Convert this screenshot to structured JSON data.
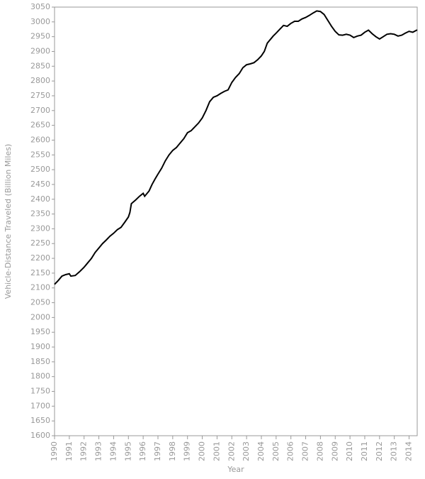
{
  "chart_data": {
    "type": "line",
    "x_label": "Year",
    "y_label": "Vehicle-Distance Traveled (Billion Miles)",
    "xlim": [
      1990,
      2014.55
    ],
    "ylim": [
      1600,
      3050
    ],
    "xticks": [
      1990,
      1991,
      1992,
      1993,
      1994,
      1995,
      1996,
      1997,
      1998,
      1999,
      2000,
      2001,
      2002,
      2003,
      2004,
      2005,
      2006,
      2007,
      2008,
      2009,
      2010,
      2011,
      2012,
      2013,
      2014
    ],
    "yticks": [
      1600,
      1650,
      1700,
      1750,
      1800,
      1850,
      1900,
      1950,
      2000,
      2050,
      2100,
      2150,
      2200,
      2250,
      2300,
      2350,
      2400,
      2450,
      2500,
      2550,
      2600,
      2650,
      2700,
      2750,
      2800,
      2850,
      2900,
      2950,
      3000,
      3050
    ],
    "grid": false,
    "series": [
      {
        "color": "#000000",
        "x": [
          1990.0,
          1990.25,
          1990.5,
          1990.75,
          1991.0,
          1991.1,
          1991.4,
          1991.7,
          1992.0,
          1992.25,
          1992.5,
          1992.75,
          1993.0,
          1993.25,
          1993.5,
          1993.75,
          1994.0,
          1994.25,
          1994.5,
          1994.75,
          1995.0,
          1995.1,
          1995.2,
          1995.5,
          1995.75,
          1996.0,
          1996.1,
          1996.4,
          1996.6,
          1996.8,
          1997.0,
          1997.25,
          1997.5,
          1997.75,
          1998.0,
          1998.25,
          1998.5,
          1998.75,
          1999.0,
          1999.25,
          1999.5,
          1999.75,
          2000.0,
          2000.25,
          2000.5,
          2000.75,
          2001.0,
          2001.25,
          2001.5,
          2001.75,
          2002.0,
          2002.25,
          2002.5,
          2002.75,
          2003.0,
          2003.25,
          2003.5,
          2003.75,
          2004.0,
          2004.2,
          2004.4,
          2004.6,
          2004.8,
          2005.0,
          2005.25,
          2005.5,
          2005.75,
          2006.0,
          2006.25,
          2006.5,
          2006.75,
          2007.0,
          2007.25,
          2007.5,
          2007.75,
          2008.0,
          2008.25,
          2008.5,
          2008.75,
          2009.0,
          2009.25,
          2009.5,
          2009.75,
          2010.0,
          2010.25,
          2010.5,
          2010.75,
          2011.0,
          2011.25,
          2011.5,
          2011.75,
          2012.0,
          2012.25,
          2012.5,
          2012.75,
          2013.0,
          2013.25,
          2013.5,
          2013.75,
          2014.0,
          2014.25,
          2014.55
        ],
        "values": [
          2112,
          2125,
          2140,
          2145,
          2148,
          2140,
          2142,
          2155,
          2170,
          2185,
          2200,
          2220,
          2235,
          2250,
          2262,
          2275,
          2285,
          2297,
          2305,
          2322,
          2340,
          2355,
          2385,
          2398,
          2410,
          2420,
          2410,
          2428,
          2450,
          2468,
          2485,
          2505,
          2530,
          2550,
          2565,
          2575,
          2590,
          2605,
          2625,
          2632,
          2645,
          2658,
          2675,
          2700,
          2730,
          2745,
          2750,
          2758,
          2765,
          2770,
          2795,
          2812,
          2825,
          2845,
          2855,
          2858,
          2862,
          2872,
          2885,
          2900,
          2928,
          2940,
          2952,
          2962,
          2975,
          2988,
          2985,
          2995,
          3002,
          3002,
          3010,
          3015,
          3022,
          3030,
          3037,
          3035,
          3025,
          3005,
          2985,
          2968,
          2956,
          2955,
          2958,
          2955,
          2947,
          2952,
          2955,
          2965,
          2972,
          2960,
          2950,
          2942,
          2950,
          2958,
          2960,
          2958,
          2952,
          2955,
          2962,
          2968,
          2965,
          2973
        ]
      }
    ]
  }
}
